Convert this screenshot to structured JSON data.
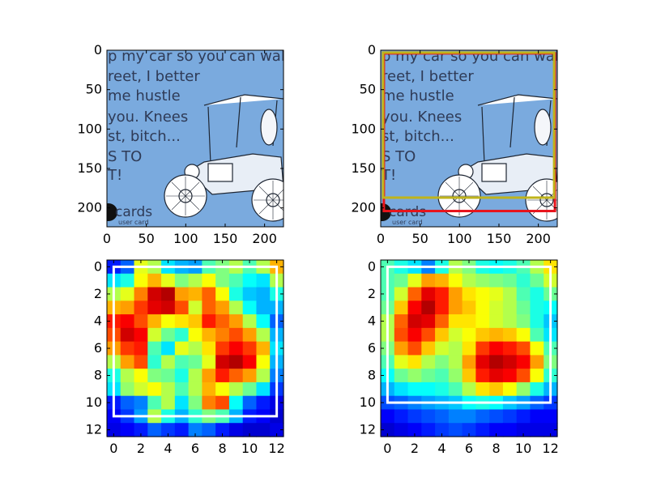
{
  "figure": {
    "background": "#ffffff"
  },
  "chart_data": [
    {
      "type": "image",
      "panel": "top-left",
      "xlim": [
        0,
        224
      ],
      "ylim": [
        224,
        0
      ],
      "xticks": [
        0,
        50,
        100,
        150,
        200
      ],
      "yticks": [
        0,
        50,
        100,
        150,
        200
      ],
      "image": {
        "background": "#7aaade",
        "lines": [
          "p my car so you can walk a",
          "reet, I better",
          "me hustle",
          "you. Knees",
          "st, bitch...",
          "S TO",
          "T!"
        ],
        "brand": "cards",
        "brand_sub": "user card"
      },
      "boxes": []
    },
    {
      "type": "image",
      "panel": "top-right",
      "xlim": [
        0,
        224
      ],
      "ylim": [
        224,
        0
      ],
      "xticks": [
        0,
        50,
        100,
        150,
        200
      ],
      "yticks": [
        0,
        50,
        100,
        150,
        200
      ],
      "image": {
        "background": "#7aaade",
        "lines": [
          "p my car so you can walk a",
          "reet, I better",
          "me hustle",
          "you. Knees",
          "st, bitch...",
          "S TO",
          "T!"
        ],
        "brand": "cards",
        "brand_sub": "user card"
      },
      "boxes": [
        {
          "color": "#e8131b",
          "x0": 4,
          "y0": 4,
          "x1": 221,
          "y1": 204
        },
        {
          "color": "#bfb41b",
          "x0": 3,
          "y0": 3,
          "x1": 220,
          "y1": 187
        }
      ]
    },
    {
      "type": "heatmap",
      "panel": "bottom-left",
      "colormap": "jet",
      "xlim": [
        -0.5,
        12.5
      ],
      "ylim": [
        12.5,
        -0.5
      ],
      "xticks": [
        0,
        2,
        4,
        6,
        8,
        10,
        12
      ],
      "yticks": [
        0,
        2,
        4,
        6,
        8,
        10,
        12
      ],
      "z": [
        [
          0.15,
          0.22,
          0.6,
          0.55,
          0.35,
          0.3,
          0.28,
          0.45,
          0.5,
          0.55,
          0.45,
          0.55,
          0.7
        ],
        [
          0.35,
          0.4,
          0.62,
          0.7,
          0.6,
          0.5,
          0.55,
          0.62,
          0.5,
          0.45,
          0.38,
          0.35,
          0.55
        ],
        [
          0.55,
          0.6,
          0.75,
          0.92,
          0.95,
          0.72,
          0.7,
          0.78,
          0.62,
          0.4,
          0.32,
          0.3,
          0.4
        ],
        [
          0.7,
          0.72,
          0.82,
          0.9,
          0.92,
          0.8,
          0.58,
          0.78,
          0.72,
          0.55,
          0.38,
          0.3,
          0.3
        ],
        [
          0.85,
          0.88,
          0.8,
          0.7,
          0.62,
          0.65,
          0.68,
          0.85,
          0.78,
          0.72,
          0.55,
          0.38,
          0.22
        ],
        [
          0.8,
          0.92,
          0.88,
          0.58,
          0.48,
          0.42,
          0.62,
          0.7,
          0.75,
          0.8,
          0.72,
          0.55,
          0.3
        ],
        [
          0.72,
          0.82,
          0.85,
          0.45,
          0.35,
          0.6,
          0.55,
          0.65,
          0.82,
          0.88,
          0.82,
          0.7,
          0.35
        ],
        [
          0.55,
          0.72,
          0.8,
          0.42,
          0.55,
          0.45,
          0.48,
          0.6,
          0.92,
          0.95,
          0.88,
          0.62,
          0.3
        ],
        [
          0.4,
          0.55,
          0.62,
          0.5,
          0.48,
          0.4,
          0.55,
          0.72,
          0.85,
          0.78,
          0.72,
          0.55,
          0.25
        ],
        [
          0.35,
          0.52,
          0.58,
          0.62,
          0.55,
          0.45,
          0.55,
          0.7,
          0.62,
          0.55,
          0.48,
          0.35,
          0.18
        ],
        [
          0.15,
          0.22,
          0.25,
          0.45,
          0.55,
          0.35,
          0.5,
          0.75,
          0.8,
          0.38,
          0.22,
          0.15,
          0.1
        ],
        [
          0.12,
          0.18,
          0.28,
          0.55,
          0.4,
          0.3,
          0.42,
          0.5,
          0.45,
          0.3,
          0.15,
          0.12,
          0.08
        ],
        [
          0.1,
          0.12,
          0.15,
          0.22,
          0.18,
          0.15,
          0.25,
          0.22,
          0.15,
          0.1,
          0.08,
          0.08,
          0.1
        ]
      ],
      "box": {
        "color": "#ffffff",
        "x0": 0,
        "y0": 0,
        "x1": 12,
        "y1": 11
      }
    },
    {
      "type": "heatmap",
      "panel": "bottom-right",
      "colormap": "jet",
      "xlim": [
        -0.5,
        12.5
      ],
      "ylim": [
        12.5,
        -0.5
      ],
      "xticks": [
        0,
        2,
        4,
        6,
        8,
        10,
        12
      ],
      "yticks": [
        0,
        2,
        4,
        6,
        8,
        10,
        12
      ],
      "z": [
        [
          0.45,
          0.4,
          0.35,
          0.25,
          0.4,
          0.55,
          0.5,
          0.4,
          0.38,
          0.4,
          0.45,
          0.55,
          0.65
        ],
        [
          0.45,
          0.48,
          0.6,
          0.72,
          0.7,
          0.62,
          0.55,
          0.52,
          0.5,
          0.48,
          0.42,
          0.48,
          0.58
        ],
        [
          0.45,
          0.58,
          0.78,
          0.9,
          0.85,
          0.72,
          0.65,
          0.62,
          0.6,
          0.55,
          0.45,
          0.4,
          0.48
        ],
        [
          0.48,
          0.68,
          0.88,
          0.95,
          0.85,
          0.72,
          0.68,
          0.62,
          0.58,
          0.55,
          0.48,
          0.4,
          0.38
        ],
        [
          0.55,
          0.78,
          0.92,
          0.9,
          0.78,
          0.65,
          0.65,
          0.62,
          0.58,
          0.55,
          0.5,
          0.4,
          0.32
        ],
        [
          0.55,
          0.8,
          0.88,
          0.8,
          0.68,
          0.58,
          0.62,
          0.68,
          0.7,
          0.68,
          0.62,
          0.45,
          0.35
        ],
        [
          0.5,
          0.72,
          0.8,
          0.68,
          0.58,
          0.55,
          0.65,
          0.82,
          0.88,
          0.85,
          0.8,
          0.62,
          0.45
        ],
        [
          0.45,
          0.6,
          0.65,
          0.55,
          0.5,
          0.55,
          0.72,
          0.9,
          0.95,
          0.92,
          0.88,
          0.72,
          0.5
        ],
        [
          0.38,
          0.48,
          0.52,
          0.48,
          0.45,
          0.52,
          0.68,
          0.85,
          0.9,
          0.88,
          0.8,
          0.62,
          0.42
        ],
        [
          0.3,
          0.35,
          0.38,
          0.38,
          0.4,
          0.45,
          0.55,
          0.65,
          0.68,
          0.62,
          0.52,
          0.4,
          0.3
        ],
        [
          0.2,
          0.22,
          0.25,
          0.28,
          0.3,
          0.32,
          0.38,
          0.4,
          0.38,
          0.32,
          0.28,
          0.22,
          0.18
        ],
        [
          0.12,
          0.15,
          0.18,
          0.2,
          0.22,
          0.25,
          0.25,
          0.22,
          0.2,
          0.18,
          0.15,
          0.12,
          0.12
        ],
        [
          0.08,
          0.1,
          0.12,
          0.15,
          0.18,
          0.2,
          0.18,
          0.15,
          0.12,
          0.12,
          0.1,
          0.1,
          0.1
        ]
      ],
      "box": {
        "color": "#ffffff",
        "x0": 0,
        "y0": 0,
        "x1": 12,
        "y1": 10
      }
    }
  ]
}
